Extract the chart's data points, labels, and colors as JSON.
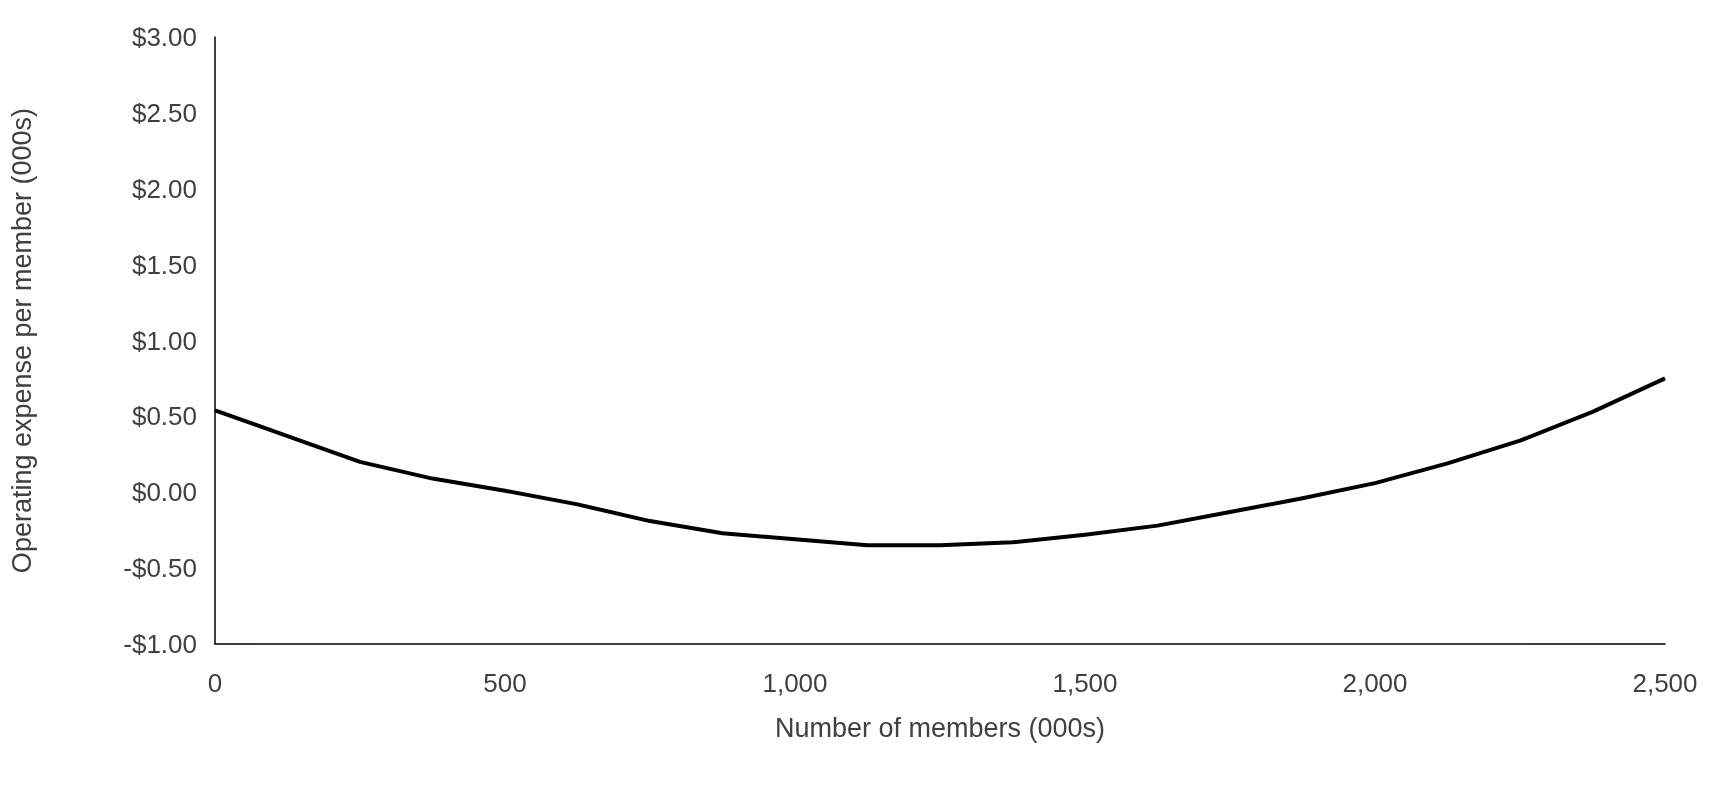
{
  "chart_data": {
    "type": "line",
    "xlabel": "Number of members (000s)",
    "ylabel": "Operating expense per member (000s)",
    "x": [
      0,
      125,
      250,
      375,
      500,
      625,
      750,
      875,
      1000,
      1125,
      1250,
      1375,
      1500,
      1625,
      1750,
      1875,
      2000,
      2125,
      2250,
      2375,
      2500
    ],
    "series": [
      {
        "color": "#000000",
        "values": [
          0.54,
          0.37,
          0.2,
          0.09,
          0.01,
          -0.08,
          -0.19,
          -0.27,
          -0.31,
          -0.35,
          -0.35,
          -0.33,
          -0.28,
          -0.22,
          -0.13,
          -0.04,
          0.06,
          0.19,
          0.34,
          0.53,
          0.75
        ]
      }
    ],
    "xlim": [
      0,
      2500
    ],
    "xticks": [
      0,
      500,
      {
        "value": 1000,
        "label": "1,000"
      },
      {
        "value": 1500,
        "label": "1,500"
      },
      {
        "value": 2000,
        "label": "2,000"
      },
      {
        "value": 2500,
        "label": "2,500"
      }
    ],
    "ylim": [
      -1,
      3
    ],
    "yticks": [
      {
        "value": -1,
        "label": "-$1.00"
      },
      {
        "value": -0.5,
        "label": "-$0.50"
      },
      {
        "value": 0,
        "label": "$0.00"
      },
      {
        "value": 0.5,
        "label": "$0.50"
      },
      {
        "value": 1,
        "label": "$1.00"
      },
      {
        "value": 1.5,
        "label": "$1.50"
      },
      {
        "value": 2,
        "label": "$2.00"
      },
      {
        "value": 2.5,
        "label": "$2.50"
      },
      {
        "value": 3,
        "label": "$3.00"
      }
    ],
    "grid": false,
    "marker": "none",
    "line_style": "solid"
  }
}
